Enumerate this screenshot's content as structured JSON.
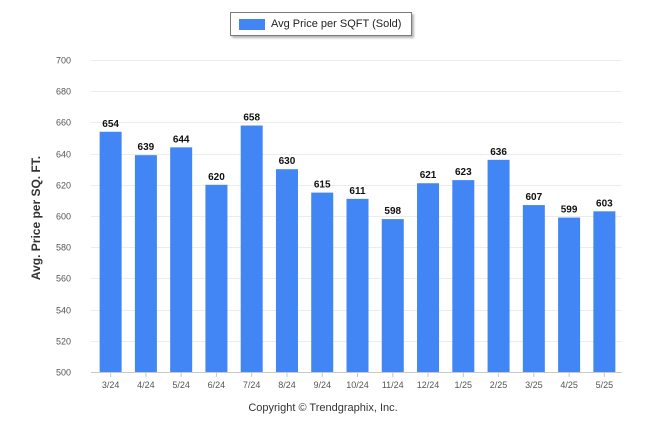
{
  "legend": {
    "label": "Avg Price per SQFT (Sold)",
    "color": "#4285f4"
  },
  "copyright": "Copyright © Trendgraphix, Inc.",
  "chart_data": {
    "type": "bar",
    "title": "",
    "xlabel": "",
    "ylabel": "Avg. Price per SQ. FT.",
    "ylim": [
      500,
      700
    ],
    "yticks": [
      500,
      520,
      540,
      560,
      580,
      600,
      620,
      640,
      660,
      680,
      700
    ],
    "grid": true,
    "legend_position": "top-center",
    "bar_color": "#4285f4",
    "categories": [
      "3/24",
      "4/24",
      "5/24",
      "6/24",
      "7/24",
      "8/24",
      "9/24",
      "10/24",
      "11/24",
      "12/24",
      "1/25",
      "2/25",
      "3/25",
      "4/25",
      "5/25"
    ],
    "series": [
      {
        "name": "Avg Price per SQFT (Sold)",
        "values": [
          654,
          639,
          644,
          620,
          658,
          630,
          615,
          611,
          598,
          621,
          623,
          636,
          607,
          599,
          603
        ]
      }
    ]
  }
}
